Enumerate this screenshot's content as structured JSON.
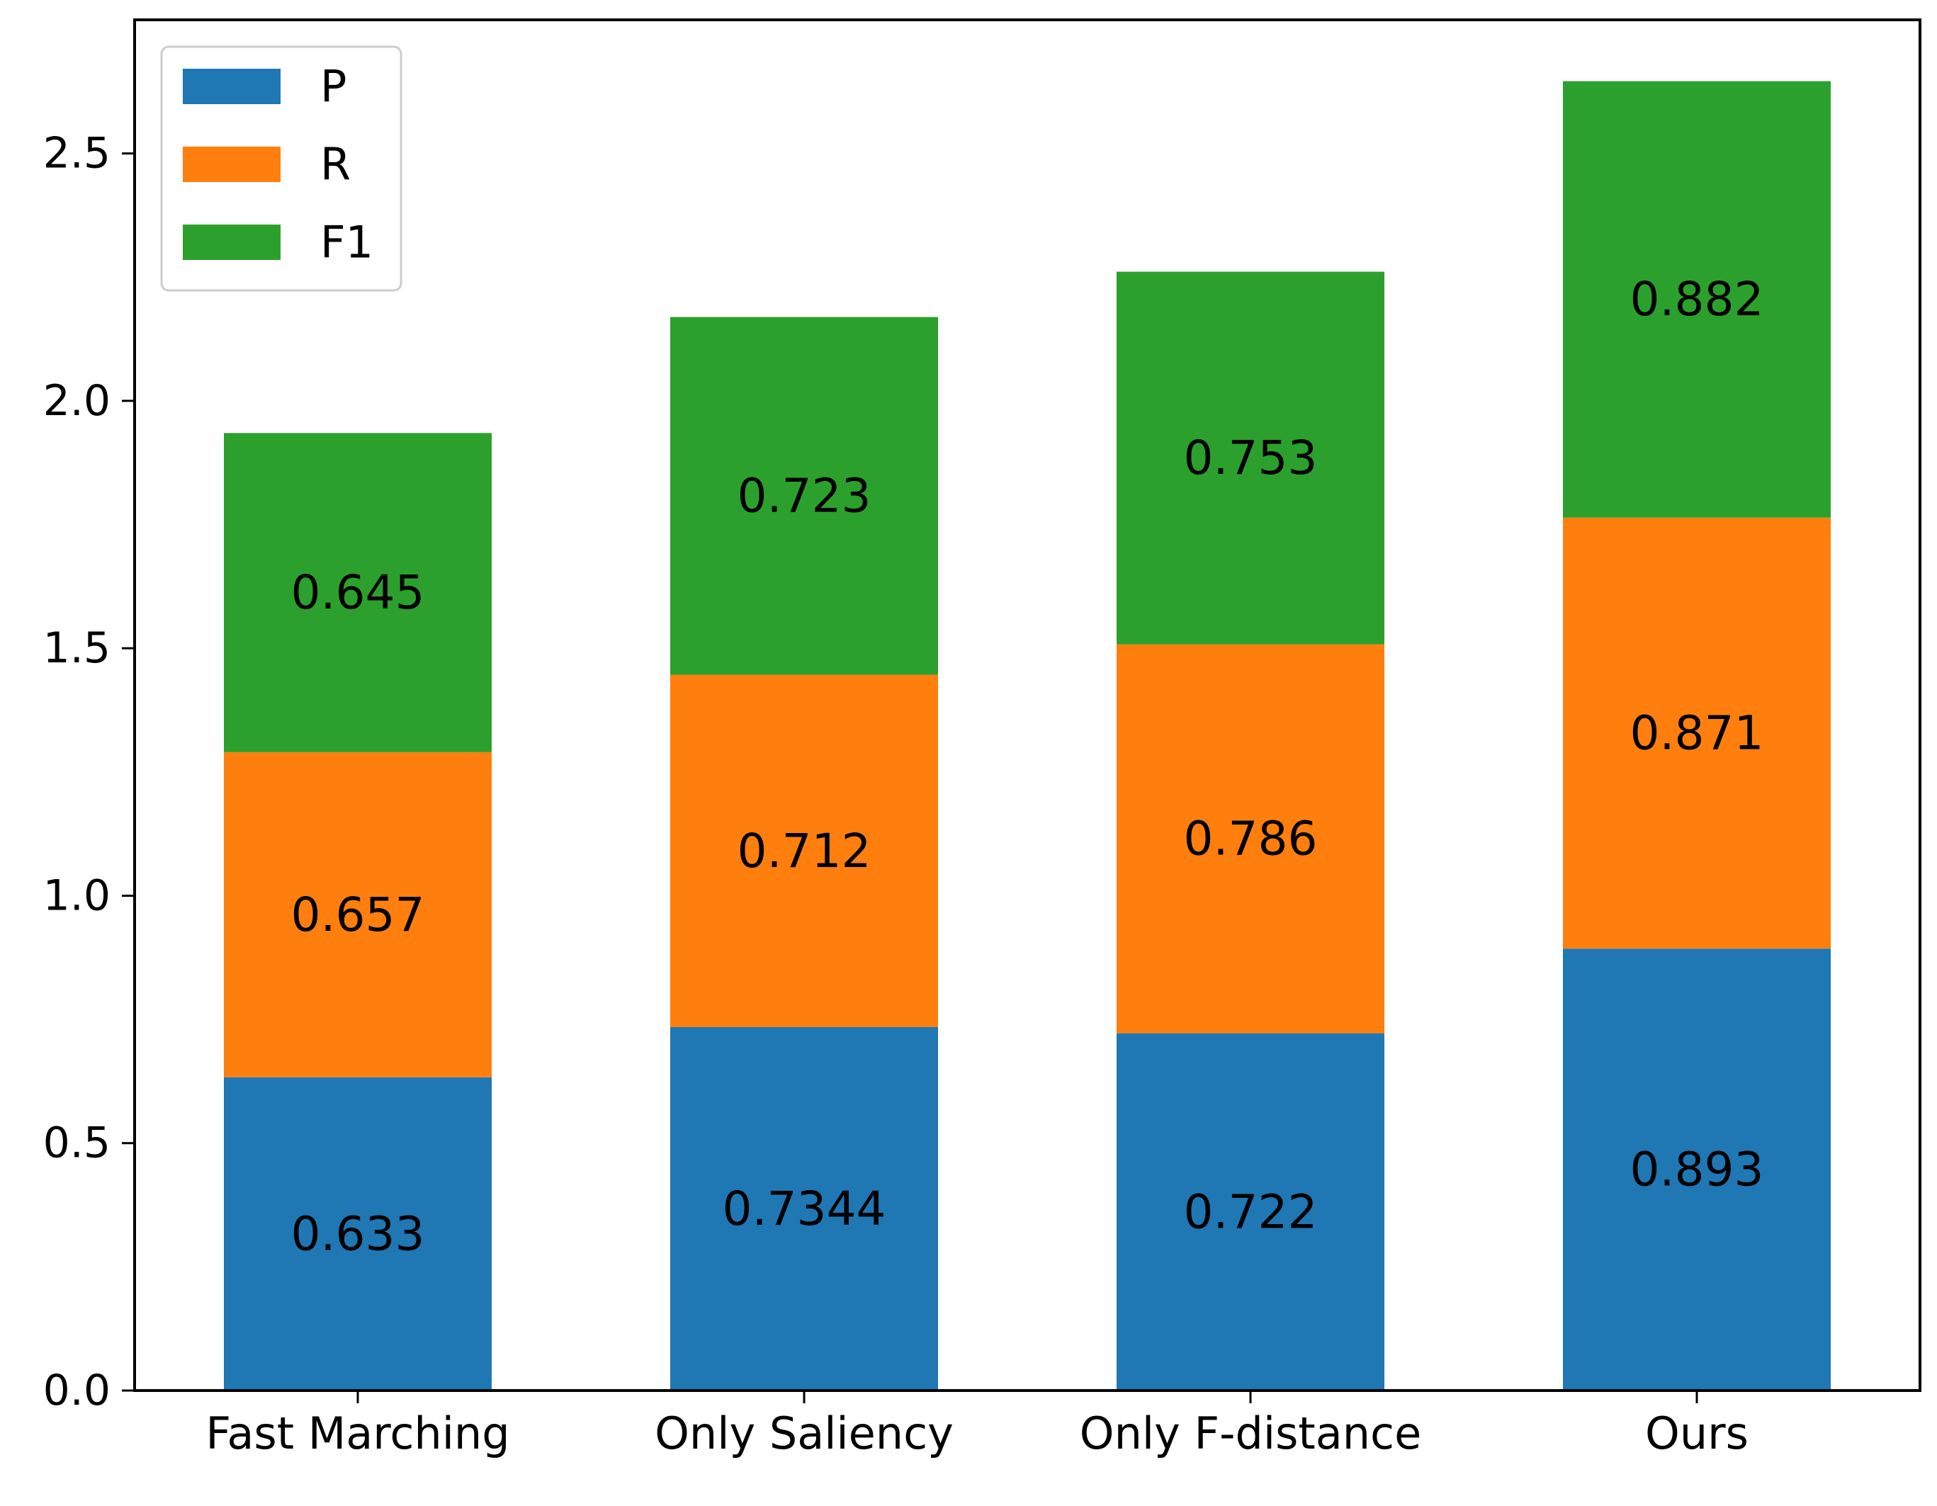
{
  "chart_data": {
    "type": "bar",
    "stacked": true,
    "title": "",
    "xlabel": "",
    "ylabel": "",
    "categories": [
      "Fast Marching",
      "Only Saliency",
      "Only F-distance",
      "Ours"
    ],
    "series": [
      {
        "name": "P",
        "color": "#1f77b4",
        "values": [
          0.633,
          0.7344,
          0.722,
          0.893
        ],
        "labels": [
          "0.633",
          "0.7344",
          "0.722",
          "0.893"
        ]
      },
      {
        "name": "R",
        "color": "#ff7f0e",
        "values": [
          0.657,
          0.712,
          0.786,
          0.871
        ],
        "labels": [
          "0.657",
          "0.712",
          "0.786",
          "0.871"
        ]
      },
      {
        "name": "F1",
        "color": "#2ca02c",
        "values": [
          0.645,
          0.723,
          0.753,
          0.882
        ],
        "labels": [
          "0.645",
          "0.723",
          "0.753",
          "0.882"
        ]
      }
    ],
    "ylim": [
      0,
      2.77
    ],
    "yticks": [
      0.0,
      0.5,
      1.0,
      1.5,
      2.0,
      2.5
    ],
    "ytick_labels": [
      "0.0",
      "0.5",
      "1.0",
      "1.5",
      "2.0",
      "2.5"
    ],
    "grid": false,
    "legend_position": "top-left"
  }
}
